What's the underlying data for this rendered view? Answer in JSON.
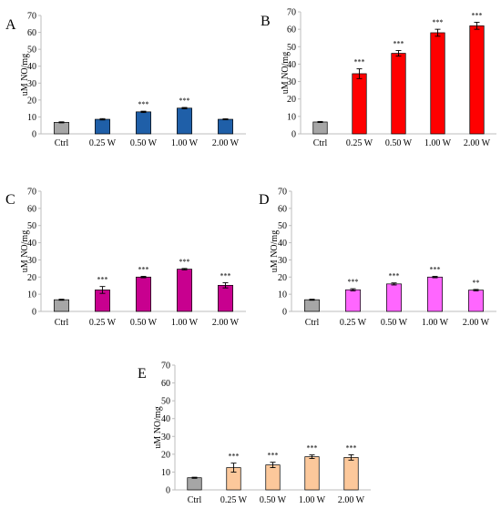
{
  "chart_data": [
    {
      "type": "bar",
      "panel": "A",
      "categories": [
        "Ctrl",
        "0.25 W",
        "0.50 W",
        "1.00 W",
        "2.00 W"
      ],
      "values": [
        6.8,
        8.6,
        13.0,
        15.2,
        8.6
      ],
      "errors": [
        0.3,
        0.4,
        0.4,
        0.4,
        0.3
      ],
      "significance": [
        "",
        "",
        "***",
        "***",
        ""
      ],
      "colors": [
        "#a6a6a6",
        "#1f5fa8",
        "#1f5fa8",
        "#1f5fa8",
        "#1f5fa8"
      ],
      "ylabel": "uM NO/mg",
      "ylim": [
        0,
        70
      ],
      "yticks": [
        0,
        10,
        20,
        30,
        40,
        50,
        60,
        70
      ]
    },
    {
      "type": "bar",
      "panel": "B",
      "categories": [
        "Ctrl",
        "0.25 W",
        "0.50 W",
        "1.00 W",
        "2.00 W"
      ],
      "values": [
        6.8,
        34.5,
        46.2,
        58.0,
        62.0
      ],
      "errors": [
        0.3,
        2.8,
        1.6,
        2.0,
        2.0
      ],
      "significance": [
        "",
        "***",
        "***",
        "***",
        "***"
      ],
      "colors": [
        "#a6a6a6",
        "#ff0000",
        "#ff0000",
        "#ff0000",
        "#ff0000"
      ],
      "ylabel": "uM NO/mg",
      "ylim": [
        0,
        70
      ],
      "yticks": [
        0,
        10,
        20,
        30,
        40,
        50,
        60,
        70
      ]
    },
    {
      "type": "bar",
      "panel": "C",
      "categories": [
        "Ctrl",
        "0.25 W",
        "0.50 W",
        "1.00 W",
        "2.00 W"
      ],
      "values": [
        6.8,
        12.5,
        20.0,
        24.6,
        15.2
      ],
      "errors": [
        0.3,
        2.0,
        0.4,
        0.4,
        1.5
      ],
      "significance": [
        "",
        "***",
        "***",
        "***",
        "***"
      ],
      "colors": [
        "#a6a6a6",
        "#c8008f",
        "#c8008f",
        "#c8008f",
        "#c8008f"
      ],
      "ylabel": "uM NO/mg",
      "ylim": [
        0,
        70
      ],
      "yticks": [
        0,
        10,
        20,
        30,
        40,
        50,
        60,
        70
      ]
    },
    {
      "type": "bar",
      "panel": "D",
      "categories": [
        "Ctrl",
        "0.25 W",
        "0.50 W",
        "1.00 W",
        "2.00 W"
      ],
      "values": [
        6.8,
        12.6,
        16.0,
        20.0,
        12.4
      ],
      "errors": [
        0.3,
        0.6,
        0.6,
        0.4,
        0.4
      ],
      "significance": [
        "",
        "***",
        "***",
        "***",
        "**"
      ],
      "colors": [
        "#a6a6a6",
        "#ff66ff",
        "#ff66ff",
        "#ff66ff",
        "#ff66ff"
      ],
      "ylabel": "uM NO/mg",
      "ylim": [
        0,
        70
      ],
      "yticks": [
        0,
        10,
        20,
        30,
        40,
        50,
        60,
        70
      ]
    },
    {
      "type": "bar",
      "panel": "E",
      "categories": [
        "Ctrl",
        "0.25 W",
        "0.50 W",
        "1.00 W",
        "2.00 W"
      ],
      "values": [
        6.8,
        12.5,
        14.0,
        18.6,
        18.2
      ],
      "errors": [
        0.3,
        2.5,
        1.5,
        1.0,
        1.5
      ],
      "significance": [
        "",
        "***",
        "***",
        "***",
        "***"
      ],
      "colors": [
        "#a6a6a6",
        "#fcc89b",
        "#fcc89b",
        "#fcc89b",
        "#fcc89b"
      ],
      "ylabel": "uM NO/mg",
      "ylim": [
        0,
        70
      ],
      "yticks": [
        0,
        10,
        20,
        30,
        40,
        50,
        60,
        70
      ]
    }
  ]
}
